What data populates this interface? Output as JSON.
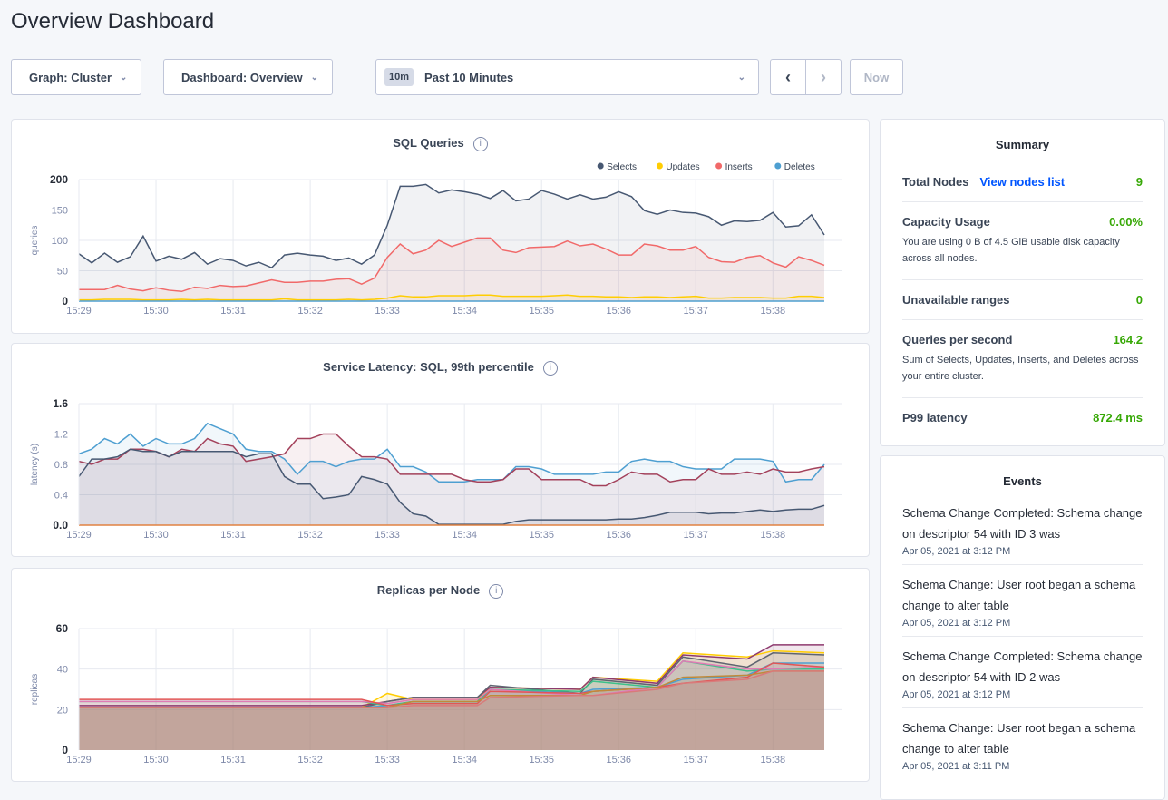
{
  "page_title": "Overview Dashboard",
  "toolbar": {
    "graph_label": "Graph: Cluster",
    "dashboard_label": "Dashboard: Overview",
    "time_badge": "10m",
    "time_label": "Past 10 Minutes",
    "now_label": "Now",
    "prev_icon": "chevron-left-icon",
    "next_icon": "chevron-right-icon"
  },
  "summary": {
    "title": "Summary",
    "total_nodes": {
      "label": "Total Nodes",
      "link": "View nodes list",
      "value": "9"
    },
    "capacity": {
      "label": "Capacity Usage",
      "value": "0.00%",
      "desc": "You are using 0 B of 4.5 GiB usable disk capacity across all nodes."
    },
    "unavailable": {
      "label": "Unavailable ranges",
      "value": "0"
    },
    "qps": {
      "label": "Queries per second",
      "value": "164.2",
      "desc": "Sum of Selects, Updates, Inserts, and Deletes across your entire cluster."
    },
    "p99": {
      "label": "P99 latency",
      "value": "872.4 ms"
    },
    "value_color": "#37a806"
  },
  "events": {
    "title": "Events",
    "items": [
      {
        "text": "Schema Change Completed: Schema change on descriptor 54 with ID 3 was",
        "date": "Apr 05, 2021 at 3:12 PM"
      },
      {
        "text": "Schema Change: User root began a schema change to alter table",
        "date": "Apr 05, 2021 at 3:12 PM"
      },
      {
        "text": "Schema Change Completed: Schema change on descriptor 54 with ID 2 was",
        "date": "Apr 05, 2021 at 3:12 PM"
      },
      {
        "text": "Schema Change: User root began a schema change to alter table",
        "date": "Apr 05, 2021 at 3:11 PM"
      }
    ]
  },
  "chart_data": [
    {
      "type": "area",
      "title": "SQL Queries",
      "ylabel": "queries",
      "ylim": [
        0,
        200
      ],
      "yticks": [
        "0",
        "50",
        "100",
        "150",
        "200"
      ],
      "ytick_values": [
        0,
        50,
        100,
        150,
        200
      ],
      "xlim": [
        "15:29:00",
        "15:38:40"
      ],
      "xticks": [
        "15:29",
        "15:30",
        "15:31",
        "15:32",
        "15:33",
        "15:34",
        "15:35",
        "15:36",
        "15:37",
        "15:38"
      ],
      "grid": true,
      "legend": "top-right",
      "x_interval": "10s",
      "series": [
        {
          "name": "Selects",
          "color": "#475872",
          "values": [
            78,
            63,
            79,
            64,
            73,
            107,
            66,
            74,
            69,
            80,
            61,
            70,
            67,
            58,
            64,
            55,
            76,
            79,
            76,
            74,
            67,
            71,
            61,
            76,
            125,
            189,
            189,
            192,
            178,
            183,
            180,
            176,
            169,
            182,
            165,
            168,
            182,
            176,
            168,
            175,
            168,
            171,
            180,
            172,
            149,
            143,
            150,
            146,
            145,
            139,
            125,
            132,
            131,
            133,
            146,
            122,
            124,
            142,
            109
          ]
        },
        {
          "name": "Updates",
          "color": "#ffcd02",
          "values": [
            2,
            2,
            3,
            3,
            3,
            2,
            2,
            2,
            3,
            2,
            3,
            2,
            2,
            2,
            2,
            2,
            4,
            2,
            2,
            2,
            2,
            3,
            2,
            3,
            5,
            9,
            7,
            7,
            9,
            9,
            9,
            10,
            10,
            8,
            8,
            8,
            8,
            9,
            10,
            8,
            8,
            7,
            7,
            6,
            7,
            7,
            6,
            7,
            8,
            5,
            5,
            6,
            6,
            6,
            5,
            5,
            8,
            8,
            6
          ]
        },
        {
          "name": "Inserts",
          "color": "#f16969",
          "values": [
            19,
            19,
            19,
            26,
            20,
            17,
            22,
            18,
            16,
            23,
            21,
            26,
            24,
            25,
            30,
            35,
            31,
            31,
            33,
            33,
            36,
            37,
            28,
            38,
            72,
            94,
            78,
            84,
            100,
            90,
            97,
            104,
            104,
            84,
            80,
            88,
            89,
            90,
            99,
            91,
            94,
            86,
            76,
            76,
            94,
            91,
            84,
            84,
            90,
            72,
            65,
            64,
            72,
            75,
            63,
            56,
            73,
            67,
            59
          ]
        },
        {
          "name": "Deletes",
          "color": "#4e9fd1",
          "values": [
            0,
            0,
            0,
            0,
            0,
            0,
            0,
            0,
            0,
            0,
            0,
            0,
            0,
            0,
            0,
            0,
            0,
            0,
            0,
            0,
            0,
            0,
            0,
            0,
            0,
            0,
            0,
            0,
            0,
            0,
            0,
            0,
            0,
            0,
            0,
            0,
            0,
            0,
            0,
            0,
            0,
            0,
            0,
            0,
            0,
            0,
            0,
            0,
            0,
            0,
            0,
            0,
            0,
            0,
            0,
            0,
            0,
            0,
            0
          ]
        }
      ]
    },
    {
      "type": "area",
      "title": "Service Latency: SQL, 99th percentile",
      "ylabel": "latency (s)",
      "ylim": [
        0,
        1.6
      ],
      "yticks": [
        "0.0",
        "0.4",
        "0.8",
        "1.2",
        "1.6"
      ],
      "ytick_values": [
        0,
        0.4,
        0.8,
        1.2,
        1.6
      ],
      "xlim": [
        "15:29:00",
        "15:38:40"
      ],
      "xticks": [
        "15:29",
        "15:30",
        "15:31",
        "15:32",
        "15:33",
        "15:34",
        "15:35",
        "15:36",
        "15:37",
        "15:38"
      ],
      "grid": true,
      "x_interval": "10s",
      "series": [
        {
          "color": "#4e9fd1",
          "values": [
            0.94,
            1.0,
            1.14,
            1.07,
            1.2,
            1.04,
            1.14,
            1.07,
            1.07,
            1.14,
            1.34,
            1.27,
            1.2,
            1.0,
            0.97,
            0.97,
            0.87,
            0.67,
            0.84,
            0.84,
            0.77,
            0.84,
            0.87,
            0.87,
            1.0,
            0.77,
            0.77,
            0.7,
            0.57,
            0.57,
            0.57,
            0.6,
            0.6,
            0.6,
            0.77,
            0.77,
            0.74,
            0.67,
            0.67,
            0.67,
            0.67,
            0.7,
            0.7,
            0.84,
            0.87,
            0.84,
            0.84,
            0.77,
            0.74,
            0.74,
            0.74,
            0.87,
            0.87,
            0.87,
            0.84,
            0.57,
            0.6,
            0.6,
            0.8
          ]
        },
        {
          "color": "#a3415b",
          "values": [
            0.84,
            0.8,
            0.87,
            0.87,
            1.0,
            1.0,
            0.97,
            0.9,
            1.0,
            0.97,
            1.14,
            1.07,
            1.04,
            0.84,
            0.87,
            0.9,
            0.94,
            1.14,
            1.14,
            1.2,
            1.2,
            1.04,
            0.9,
            0.9,
            0.87,
            0.67,
            0.67,
            0.67,
            0.67,
            0.67,
            0.6,
            0.57,
            0.57,
            0.6,
            0.74,
            0.74,
            0.6,
            0.6,
            0.6,
            0.6,
            0.52,
            0.52,
            0.6,
            0.7,
            0.67,
            0.67,
            0.57,
            0.6,
            0.6,
            0.74,
            0.67,
            0.67,
            0.7,
            0.67,
            0.74,
            0.7,
            0.7,
            0.74,
            0.77
          ]
        },
        {
          "color": "#475872",
          "values": [
            0.64,
            0.87,
            0.87,
            0.9,
            1.0,
            0.97,
            0.97,
            0.9,
            0.97,
            0.97,
            0.97,
            0.97,
            0.97,
            0.9,
            0.94,
            0.94,
            0.64,
            0.54,
            0.54,
            0.35,
            0.37,
            0.4,
            0.64,
            0.6,
            0.54,
            0.3,
            0.15,
            0.12,
            0.01,
            0.01,
            0.01,
            0.01,
            0.01,
            0.01,
            0.05,
            0.07,
            0.07,
            0.07,
            0.07,
            0.07,
            0.07,
            0.07,
            0.08,
            0.08,
            0.1,
            0.13,
            0.17,
            0.17,
            0.17,
            0.15,
            0.16,
            0.16,
            0.18,
            0.2,
            0.18,
            0.2,
            0.21,
            0.21,
            0.26
          ]
        },
        {
          "color": "#e18242",
          "values": [
            0,
            0,
            0,
            0,
            0,
            0,
            0,
            0,
            0,
            0,
            0,
            0,
            0,
            0,
            0,
            0,
            0,
            0,
            0,
            0,
            0,
            0,
            0,
            0,
            0,
            0,
            0,
            0,
            0,
            0,
            0,
            0,
            0,
            0,
            0,
            0,
            0,
            0,
            0,
            0,
            0,
            0,
            0,
            0,
            0,
            0,
            0,
            0,
            0,
            0,
            0,
            0,
            0,
            0,
            0,
            0,
            0,
            0,
            0
          ]
        }
      ]
    },
    {
      "type": "area",
      "title": "Replicas per Node",
      "ylabel": "replicas",
      "ylim": [
        0,
        60
      ],
      "yticks": [
        "0",
        "20",
        "40",
        "60"
      ],
      "ytick_values": [
        0,
        20,
        40,
        60
      ],
      "xlim": [
        "15:29:00",
        "15:38:40"
      ],
      "xticks": [
        "15:29",
        "15:30",
        "15:31",
        "15:32",
        "15:33",
        "15:34",
        "15:35",
        "15:36",
        "15:37",
        "15:38"
      ],
      "grid": true,
      "x": [
        "15:29:00",
        "15:32:40",
        "15:33:00",
        "15:33:20",
        "15:34:10",
        "15:34:20",
        "15:35:30",
        "15:35:40",
        "15:36:30",
        "15:36:50",
        "15:37:40",
        "15:38:00",
        "15:38:40"
      ],
      "series": [
        {
          "color": "#ffcd02",
          "values": [
            21,
            21,
            28,
            25,
            25,
            31,
            30,
            36,
            34,
            48,
            46,
            49,
            48
          ]
        },
        {
          "color": "#8e3a6f",
          "values": [
            22,
            22,
            24,
            26,
            26,
            31,
            30,
            36,
            33,
            47,
            45,
            52,
            52
          ]
        },
        {
          "color": "#5e6470",
          "values": [
            21,
            21,
            24,
            26,
            26,
            32,
            28,
            35,
            32,
            46,
            41,
            48,
            47
          ]
        },
        {
          "color": "#4e9fd1",
          "values": [
            21,
            21,
            22,
            24,
            24,
            30,
            28,
            30,
            31,
            35,
            37,
            43,
            43
          ]
        },
        {
          "color": "#3dc08a",
          "values": [
            24,
            24,
            22,
            24,
            24,
            30,
            29,
            34,
            31,
            44,
            39,
            40,
            40
          ]
        },
        {
          "color": "#e07ab5",
          "values": [
            24,
            24,
            23,
            25,
            25,
            30,
            27,
            27,
            31,
            44,
            40,
            40,
            41
          ]
        },
        {
          "color": "#e15656",
          "values": [
            25,
            25,
            22,
            23,
            23,
            29,
            28,
            29,
            31,
            33,
            36,
            43,
            41
          ]
        },
        {
          "color": "#c08a3a",
          "values": [
            21,
            21,
            21,
            24,
            24,
            27,
            27,
            29,
            31,
            36,
            37,
            39,
            39
          ]
        },
        {
          "color": "#d97a7a",
          "values": [
            21,
            21,
            21,
            22,
            22,
            26,
            27,
            27,
            30,
            33,
            35,
            39,
            39
          ]
        }
      ]
    }
  ]
}
